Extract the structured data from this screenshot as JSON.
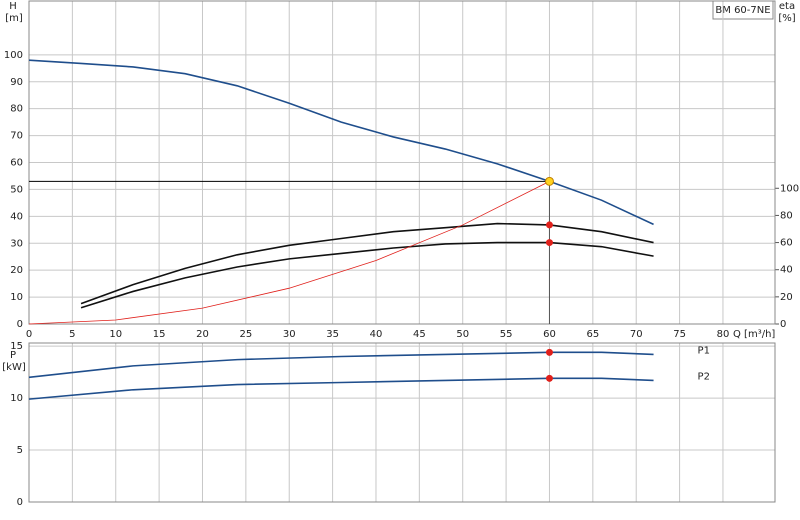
{
  "chart_data": [
    {
      "type": "line",
      "title": "BM 60-7NE",
      "x_label": "Q [m³/h]",
      "y_label": "H",
      "y_unit": "[m]",
      "y2_label": "eta",
      "y2_unit": "[%]",
      "xlim": [
        0,
        86
      ],
      "xticks": [
        0,
        5,
        10,
        15,
        20,
        25,
        30,
        35,
        40,
        45,
        50,
        55,
        60,
        65,
        70,
        75,
        80
      ],
      "ylim": [
        0,
        120
      ],
      "yticks": [
        0,
        10,
        20,
        30,
        40,
        50,
        60,
        70,
        80,
        90,
        100
      ],
      "y2lim": [
        0,
        238
      ],
      "y2ticks": [
        0,
        20,
        40,
        60,
        80,
        100
      ],
      "grid": true,
      "duty_point": {
        "x": 60,
        "y": 53
      },
      "series": [
        {
          "color": "#1f4e8c",
          "x": [
            0,
            6,
            12,
            18,
            24,
            30,
            36,
            42,
            48,
            54,
            60,
            66,
            72
          ],
          "values": [
            98,
            96.8,
            95.5,
            93,
            88.5,
            82,
            75,
            69.5,
            65,
            59.5,
            53,
            46,
            37
          ]
        },
        {
          "color": "#111111",
          "axis": "y2",
          "x": [
            6,
            12,
            18,
            24,
            30,
            36,
            42,
            48,
            54,
            60,
            66,
            72
          ],
          "values": [
            15,
            29,
            41,
            51,
            58,
            63,
            68,
            71,
            74,
            73,
            68,
            60
          ]
        },
        {
          "color": "#111111",
          "axis": "y2",
          "x": [
            6,
            12,
            18,
            24,
            30,
            36,
            42,
            48,
            54,
            60,
            66,
            72
          ],
          "values": [
            12,
            24,
            34,
            42,
            48,
            52,
            56,
            59,
            60,
            60,
            57,
            50
          ]
        },
        {
          "color": "#e0201b",
          "x": [
            0,
            10,
            20,
            30,
            40,
            50,
            60
          ],
          "values": [
            0,
            1.5,
            5.9,
            13.3,
            23.6,
            36.8,
            53
          ]
        }
      ]
    },
    {
      "type": "line",
      "y_label": "P",
      "y_unit": "[kW]",
      "xlim": [
        0,
        86
      ],
      "xticks": [
        0,
        5,
        10,
        15,
        20,
        25,
        30,
        35,
        40,
        45,
        50,
        55,
        60,
        65,
        70,
        75,
        80
      ],
      "ylim": [
        0,
        15.3
      ],
      "yticks": [
        0,
        5,
        10,
        15
      ],
      "grid": true,
      "duty_point": {
        "x": 60
      },
      "series": [
        {
          "name": "P1",
          "color": "#1f4e8c",
          "x": [
            0,
            12,
            24,
            36,
            48,
            60,
            66,
            72
          ],
          "values": [
            12,
            13.1,
            13.7,
            14,
            14.2,
            14.4,
            14.4,
            14.2
          ]
        },
        {
          "name": "P2",
          "color": "#1f4e8c",
          "x": [
            0,
            12,
            24,
            36,
            48,
            60,
            66,
            72
          ],
          "values": [
            9.9,
            10.8,
            11.3,
            11.5,
            11.7,
            11.9,
            11.9,
            11.7
          ]
        }
      ]
    }
  ]
}
